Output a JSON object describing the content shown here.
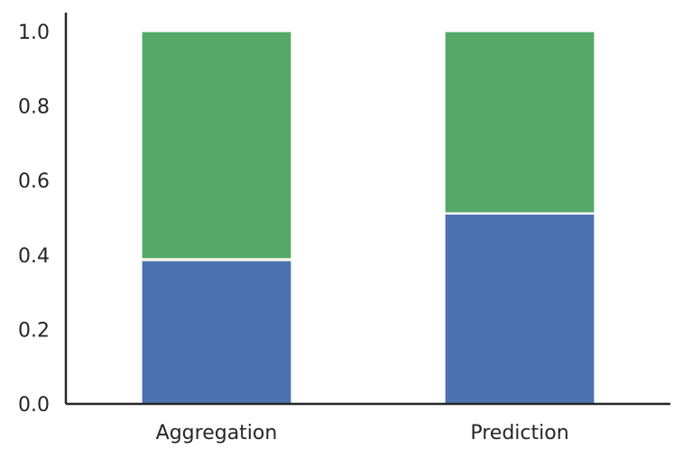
{
  "chart_data": {
    "type": "bar",
    "stacked": true,
    "categories": [
      "Aggregation",
      "Prediction"
    ],
    "series": [
      {
        "color": "#4c72b0",
        "values": [
          0.385,
          0.51
        ]
      },
      {
        "color": "#f6e8a6",
        "values": [
          0.005,
          0.003
        ]
      },
      {
        "color": "#55a868",
        "values": [
          0.61,
          0.487
        ]
      }
    ],
    "ylim": [
      0,
      1.05
    ],
    "yticks": [
      "0.0",
      "0.2",
      "0.4",
      "0.6",
      "0.8",
      "1.0"
    ],
    "xlabel": "",
    "ylabel": "",
    "title": "",
    "grid": false,
    "legend": "none"
  }
}
